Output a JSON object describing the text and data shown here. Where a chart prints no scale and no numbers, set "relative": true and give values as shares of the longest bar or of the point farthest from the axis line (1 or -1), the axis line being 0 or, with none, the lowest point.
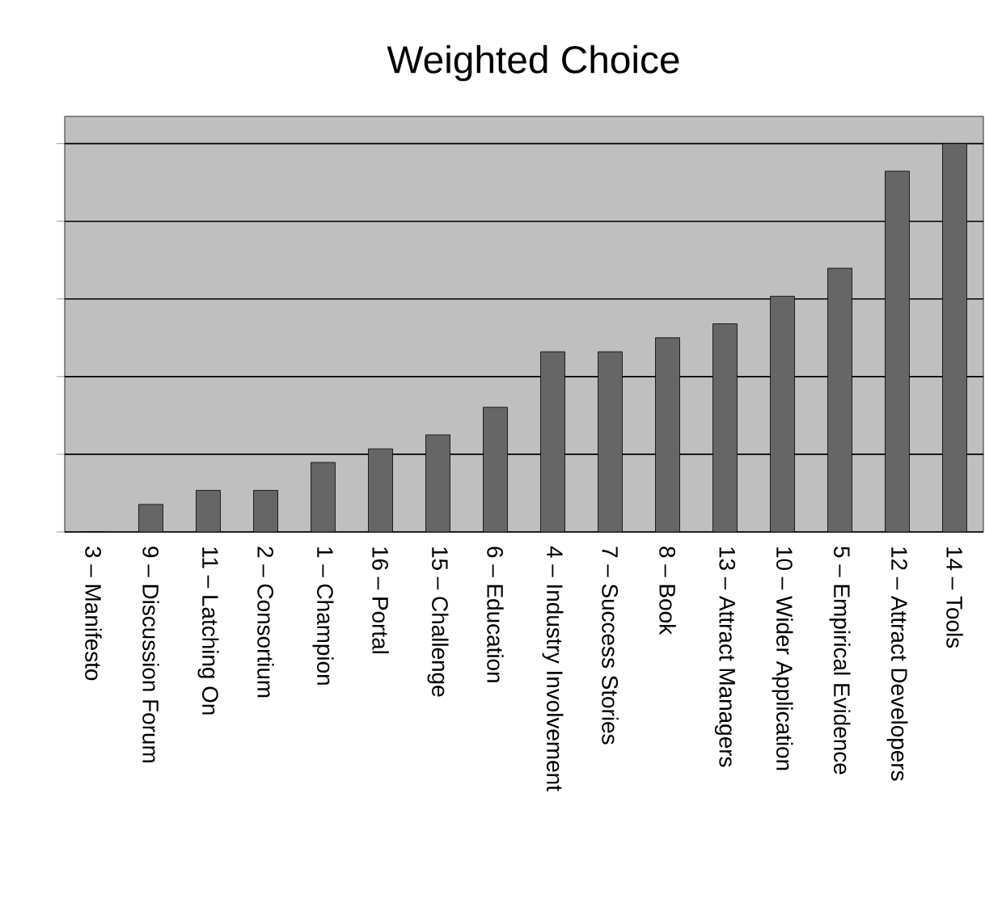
{
  "chart_data": {
    "type": "bar",
    "title": "Weighted Choice",
    "relative": true,
    "grid": "y",
    "color": "#666666",
    "categories": [
      "3 – Manifesto",
      "9 – Discussion Forum",
      "11 – Latching On",
      "2 – Consortium",
      "1 – Champion",
      "16 – Portal",
      "15 – Challenge",
      "6 – Education",
      "4 – Industry Involvement",
      "7 – Success Stories",
      "8 – Book",
      "13 – Attract Managers",
      "10 – Wider Application",
      "5 – Empirical Evidence",
      "12 – Attract Developers",
      "14 – Tools"
    ],
    "values": [
      0,
      0.071,
      0.107,
      0.107,
      0.179,
      0.214,
      0.25,
      0.321,
      0.464,
      0.464,
      0.5,
      0.536,
      0.607,
      0.679,
      0.929,
      1
    ]
  }
}
